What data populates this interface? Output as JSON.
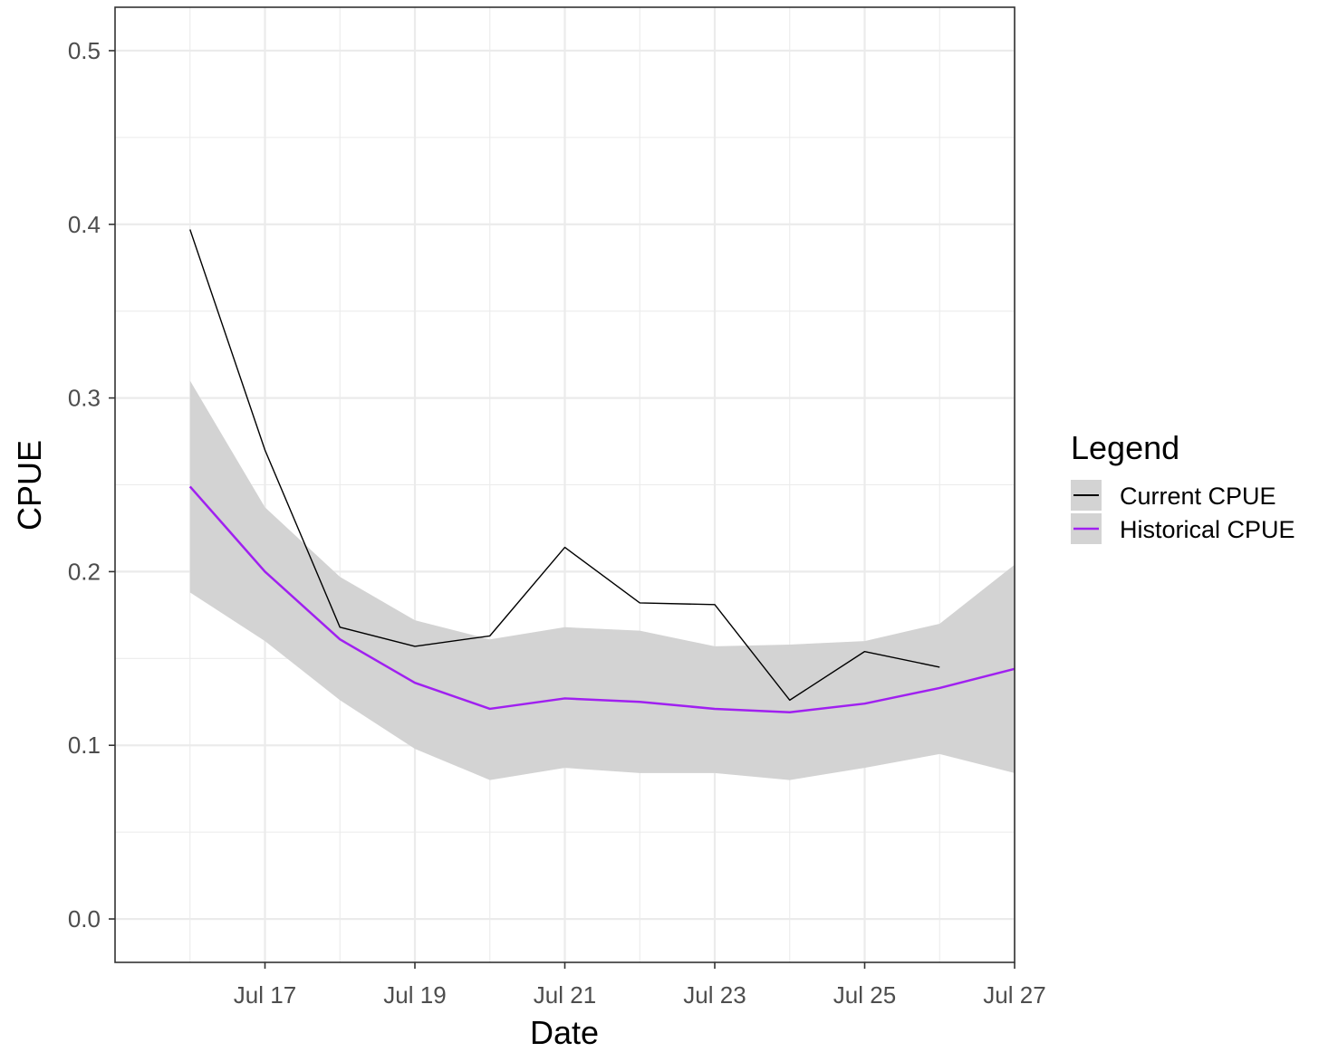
{
  "chart_data": {
    "type": "line",
    "title": "",
    "xlabel": "Date",
    "ylabel": "CPUE",
    "x_tick_labels": [
      "Jul 17",
      "Jul 19",
      "Jul 21",
      "Jul 23",
      "Jul 25",
      "Jul 27"
    ],
    "x_tick_dates": [
      "2023-07-17",
      "2023-07-19",
      "2023-07-21",
      "2023-07-23",
      "2023-07-25",
      "2023-07-27"
    ],
    "y_tick_labels": [
      "0.0",
      "0.1",
      "0.2",
      "0.3",
      "0.4",
      "0.5"
    ],
    "y_tick_values": [
      0.0,
      0.1,
      0.2,
      0.3,
      0.4,
      0.5
    ],
    "xlim": [
      "2023-07-15",
      "2023-07-27"
    ],
    "ylim": [
      -0.025,
      0.525
    ],
    "grid": true,
    "legend": {
      "title": "Legend",
      "position": "right",
      "entries": [
        "Current CPUE",
        "Historical CPUE"
      ]
    },
    "series": [
      {
        "name": "Current CPUE",
        "color": "#000000",
        "x": [
          "2023-07-16",
          "2023-07-17",
          "2023-07-18",
          "2023-07-19",
          "2023-07-20",
          "2023-07-21",
          "2023-07-22",
          "2023-07-23",
          "2023-07-24",
          "2023-07-25",
          "2023-07-26"
        ],
        "y": [
          0.397,
          0.27,
          0.168,
          0.157,
          0.163,
          0.214,
          0.182,
          0.181,
          0.126,
          0.154,
          0.145
        ]
      },
      {
        "name": "Historical CPUE",
        "color": "#a020f0",
        "x": [
          "2023-07-16",
          "2023-07-17",
          "2023-07-18",
          "2023-07-19",
          "2023-07-20",
          "2023-07-21",
          "2023-07-22",
          "2023-07-23",
          "2023-07-24",
          "2023-07-25",
          "2023-07-26",
          "2023-07-27"
        ],
        "y": [
          0.249,
          0.2,
          0.161,
          0.136,
          0.121,
          0.127,
          0.125,
          0.121,
          0.119,
          0.124,
          0.133,
          0.144
        ],
        "ribbon_lower": [
          0.188,
          0.16,
          0.126,
          0.098,
          0.08,
          0.087,
          0.084,
          0.084,
          0.08,
          0.087,
          0.095,
          0.084
        ],
        "ribbon_upper": [
          0.31,
          0.237,
          0.197,
          0.172,
          0.161,
          0.168,
          0.166,
          0.157,
          0.158,
          0.16,
          0.17,
          0.204
        ],
        "ribbon_color": "#d3d3d3"
      }
    ]
  }
}
